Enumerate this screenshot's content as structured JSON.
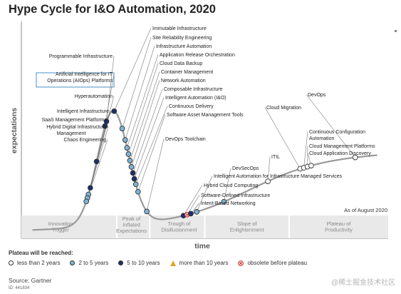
{
  "chart_data": {
    "type": "hype-cycle",
    "title": "Hype Cycle for I&O Automation, 2020",
    "xlabel": "time",
    "ylabel": "expectations",
    "as_of": "As of August 2020",
    "phases": [
      "Innovation Trigger",
      "Peak of Inflated Expectations",
      "Trough of Disillusionment",
      "Slope of Enlightenment",
      "Plateau of Productivity"
    ],
    "points": [
      {
        "label": "Immutable Infrastructure",
        "plateau": "5 to 10 years",
        "t": 0.253
      },
      {
        "label": "Site Reliability Engineering",
        "plateau": "2 to 5 years",
        "t": 0.275
      },
      {
        "label": "Infrastructure Automation",
        "plateau": "2 to 5 years",
        "t": 0.283
      },
      {
        "label": "Application Release Orchestration",
        "plateau": "2 to 5 years",
        "t": 0.288
      },
      {
        "label": "Cloud Data Backup",
        "plateau": "2 to 5 years",
        "t": 0.292
      },
      {
        "label": "Container Management",
        "plateau": "2 to 5 years",
        "t": 0.296
      },
      {
        "label": "Network Automation",
        "plateau": "2 to 5 years",
        "t": 0.3
      },
      {
        "label": "Composable Infrastructure",
        "plateau": "5 to 10 years",
        "t": 0.304
      },
      {
        "label": "Intelligent Automation (I&O)",
        "plateau": "5 to 10 years",
        "t": 0.308
      },
      {
        "label": "Continuous Delivery",
        "plateau": "2 to 5 years",
        "t": 0.312
      },
      {
        "label": "Software Asset Management Tools",
        "plateau": "2 to 5 years",
        "t": 0.318
      },
      {
        "label": "DevOps Toolchain",
        "plateau": "2 to 5 years",
        "t": 0.342
      },
      {
        "label": "Programmable Infrastructure",
        "plateau": "5 to 10 years",
        "t": 0.232
      },
      {
        "label": "Artificial Intelligence for IT Operations (AIOps) Platforms",
        "plateau": "5 to 10 years",
        "t": 0.228
      },
      {
        "label": "Hyperautomation",
        "plateau": "5 to 10 years",
        "t": 0.205
      },
      {
        "label": "Intelligent Infrastructure",
        "plateau": "5 to 10 years",
        "t": 0.188
      },
      {
        "label": "SaaS Management Platforms",
        "plateau": "2 to 5 years",
        "t": 0.183
      },
      {
        "label": "Hybrid Digital Infrastructure Management",
        "plateau": "2 to 5 years",
        "t": 0.18
      },
      {
        "label": "Chaos Engineering",
        "plateau": "2 to 5 years",
        "t": 0.177
      },
      {
        "label": "Intelligent Automation for Infrastructure Managed Services",
        "plateau": "2 to 5 years",
        "t": 0.478
      },
      {
        "label": "Hybrid Cloud Computing",
        "plateau": "5 to 10 years",
        "t": 0.442
      },
      {
        "label": "Software-Defined Infrastructure",
        "plateau": "obsolete before plateau",
        "t": 0.452
      },
      {
        "label": "Intent-Based Networking",
        "plateau": "5 to 10 years",
        "t": 0.462
      },
      {
        "label": "DevSecOps",
        "plateau": "2 to 5 years",
        "t": 0.552
      },
      {
        "label": "ITIL",
        "plateau": "less than 2 years",
        "t": 0.672
      },
      {
        "label": "Cloud Migration",
        "plateau": "less than 2 years",
        "t": 0.76
      },
      {
        "label": "Continuous Configuration Automation",
        "plateau": "less than 2 years",
        "t": 0.77
      },
      {
        "label": "Cloud Management Platforms",
        "plateau": "less than 2 years",
        "t": 0.78
      },
      {
        "label": "Cloud Application Discovery",
        "plateau": "less than 2 years",
        "t": 0.79
      },
      {
        "label": "DevOps",
        "plateau": "less than 2 years",
        "t": 0.91
      }
    ]
  },
  "legend": {
    "title": "Plateau will be reached:",
    "items": [
      {
        "label": "less than 2 years",
        "color": "#ffffff",
        "shape": "circle"
      },
      {
        "label": "2 to 5 years",
        "color": "#7fb4d6",
        "shape": "circle"
      },
      {
        "label": "5 to 10 years",
        "color": "#1d2f6b",
        "shape": "circle"
      },
      {
        "label": "more than 10 years",
        "color": "#e6a323",
        "shape": "triangle"
      },
      {
        "label": "obsolete before plateau",
        "color": "#d9534f",
        "shape": "x-circle"
      }
    ]
  },
  "source": "Source: Gartner",
  "doc_id": "ID: 441834",
  "watermark": "@稀土掘金技术社区",
  "colors": {
    "less than 2 years": "#ffffff",
    "2 to 5 years": "#7fb4d6",
    "5 to 10 years": "#1d2f6b",
    "more than 10 years": "#e6a323",
    "obsolete before plateau": "#f2c4c4",
    "curve": "#999999",
    "highlight-box": "#4a90c4"
  }
}
